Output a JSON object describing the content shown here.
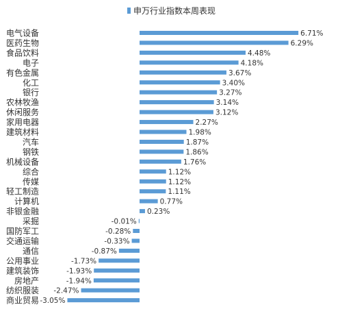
{
  "chart_data": {
    "type": "bar",
    "orientation": "horizontal",
    "legend": {
      "position": "top",
      "entries": [
        "申万行业指数本周表现"
      ]
    },
    "series": [
      {
        "name": "申万行业指数本周表现",
        "color": "#5b9bd5"
      }
    ],
    "categories": [
      "电气设备",
      "医药生物",
      "食品饮料",
      "电子",
      "有色金属",
      "化工",
      "银行",
      "农林牧渔",
      "休闲服务",
      "家用电器",
      "建筑材料",
      "汽车",
      "钢铁",
      "机械设备",
      "综合",
      "传媒",
      "轻工制造",
      "计算机",
      "非银金融",
      "采掘",
      "国防军工",
      "交通运输",
      "通信",
      "公用事业",
      "建筑装饰",
      "房地产",
      "纺织服装",
      "商业贸易"
    ],
    "values": [
      6.71,
      6.29,
      4.48,
      4.18,
      3.67,
      3.4,
      3.27,
      3.14,
      3.12,
      2.27,
      1.98,
      1.87,
      1.86,
      1.76,
      1.12,
      1.12,
      1.11,
      0.77,
      0.23,
      -0.01,
      -0.28,
      -0.33,
      -0.87,
      -1.73,
      -1.93,
      -1.94,
      -2.47,
      -3.05
    ],
    "value_labels": [
      "6.71%",
      "6.29%",
      "4.48%",
      "4.18%",
      "3.67%",
      "3.40%",
      "3.27%",
      "3.14%",
      "3.12%",
      "2.27%",
      "1.98%",
      "1.87%",
      "1.86%",
      "1.76%",
      "1.12%",
      "1.12%",
      "1.11%",
      "0.77%",
      "0.23%",
      "-0.01%",
      "-0.28%",
      "-0.33%",
      "-0.87%",
      "-1.73%",
      "-1.93%",
      "-1.94%",
      "-2.47%",
      "-3.05%"
    ],
    "xlim": [
      -3.05,
      6.71
    ],
    "grid": false
  }
}
